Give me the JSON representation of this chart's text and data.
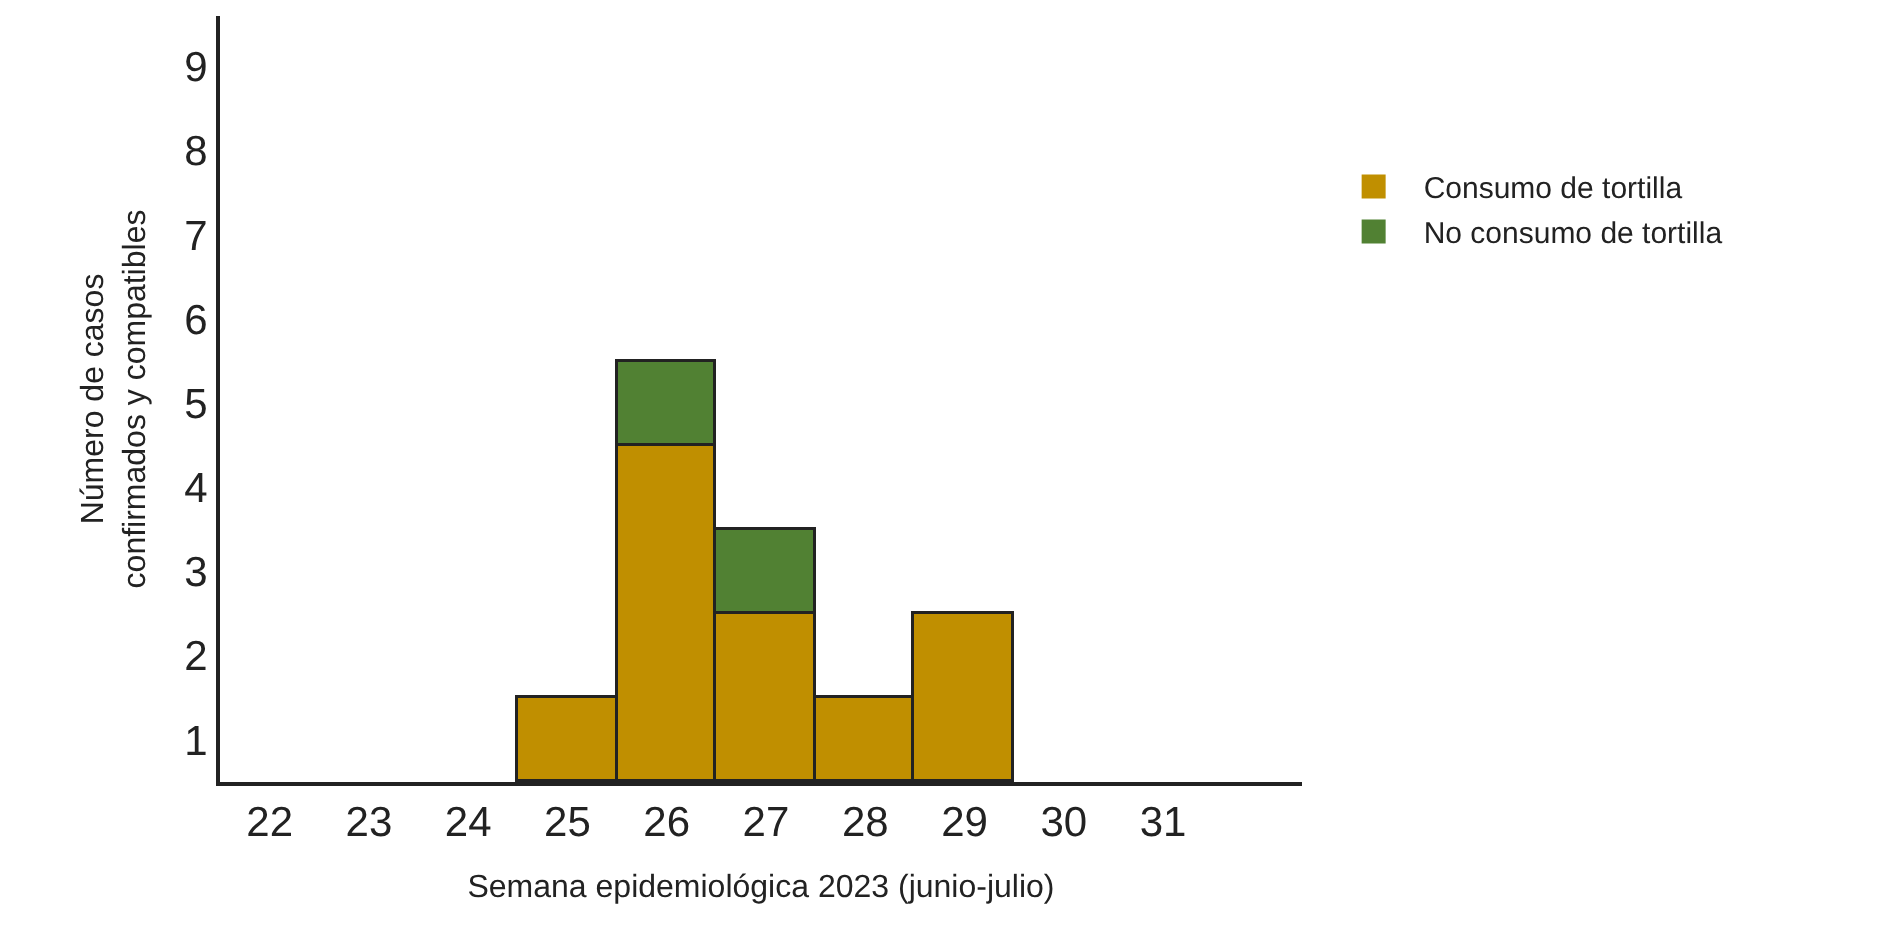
{
  "chart_data": {
    "type": "bar",
    "stacked": true,
    "xlabel": "Semana epidemiológica 2023 (junio-julio)",
    "ylabel": "Número de casos\nconfirmados y compatibles",
    "categories": [
      "22",
      "23",
      "24",
      "25",
      "26",
      "27",
      "28",
      "29",
      "30",
      "31"
    ],
    "series": [
      {
        "name": "Consumo de tortilla",
        "color": "#c08f00",
        "values": [
          0,
          0,
          0,
          1,
          4,
          2,
          1,
          2,
          0,
          0
        ]
      },
      {
        "name": "No consumo de tortilla",
        "color": "#518133",
        "values": [
          0,
          0,
          0,
          0,
          1,
          1,
          0,
          0,
          0,
          0
        ]
      }
    ],
    "ylim": [
      0,
      9.1
    ],
    "yticks": [
      {
        "value": 0.5,
        "label": "1"
      },
      {
        "value": 1.5,
        "label": "2"
      },
      {
        "value": 2.5,
        "label": "3"
      },
      {
        "value": 3.5,
        "label": "4"
      },
      {
        "value": 4.5,
        "label": "5"
      },
      {
        "value": 5.5,
        "label": "6"
      },
      {
        "value": 6.5,
        "label": "7"
      },
      {
        "value": 7.5,
        "label": "8"
      },
      {
        "value": 8.5,
        "label": "9"
      }
    ],
    "legend": "top right"
  }
}
